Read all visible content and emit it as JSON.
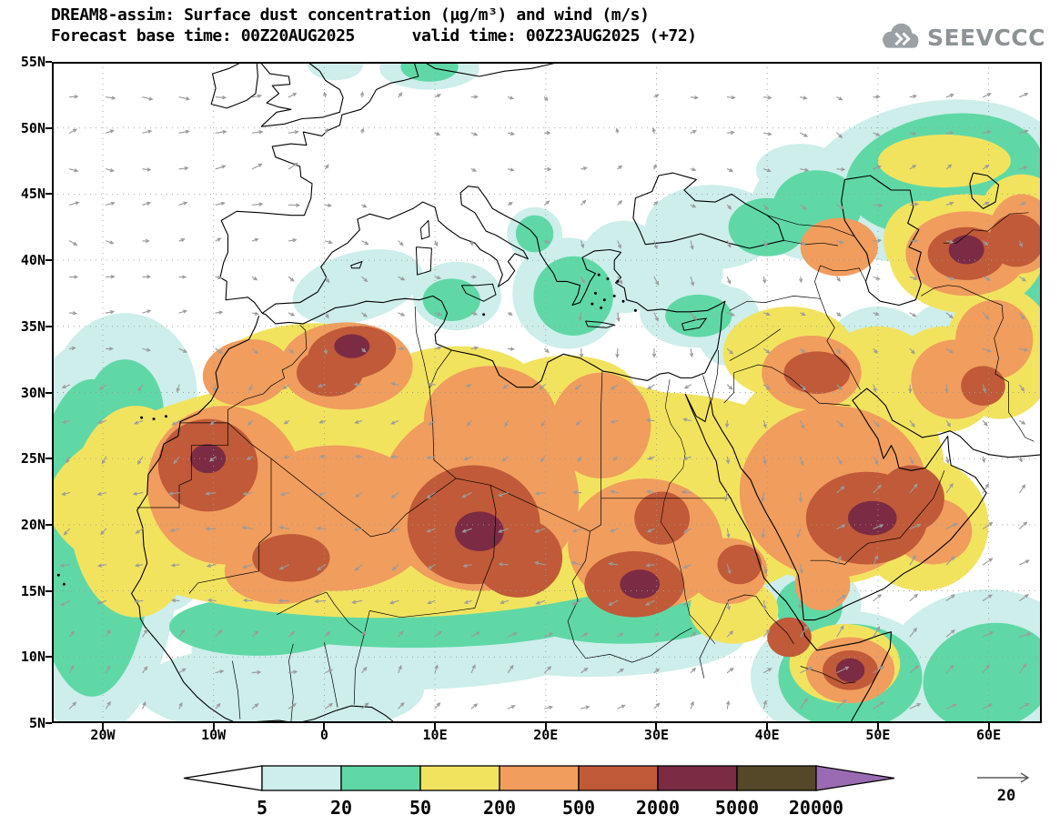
{
  "header": {
    "title_line1": "DREAM8-assim: Surface dust concentration (µg/m³) and wind (m/s)",
    "title_line2": "Forecast base time: 00Z20AUG2025      valid time: 00Z23AUG2025 (+72)",
    "logo_text": "SEEVCCC"
  },
  "map": {
    "lat_ticks": [
      "55N",
      "50N",
      "45N",
      "40N",
      "35N",
      "30N",
      "25N",
      "20N",
      "15N",
      "10N",
      "5N"
    ],
    "lon_ticks": [
      "20W",
      "10W",
      "0",
      "10E",
      "20E",
      "30E",
      "40E",
      "50E",
      "60E"
    ]
  },
  "colorbar": {
    "labels": [
      "5",
      "20",
      "50",
      "200",
      "500",
      "2000",
      "5000",
      "20000"
    ],
    "colors": [
      "#ffffff",
      "#cdeeea",
      "#5fd8a6",
      "#f2e35f",
      "#f09d5e",
      "#c05a38",
      "#7c2b45",
      "#554828",
      "#9a6bb3"
    ]
  },
  "wind_legend": {
    "label": "20"
  },
  "chart_data": {
    "type": "heatmap",
    "title": "DREAM8-assim: Surface dust concentration (µg/m³) and wind (m/s)",
    "forecast_base_time": "00Z20AUG2025",
    "valid_time": "00Z23AUG2025",
    "lead": "+72",
    "variable": "surface dust concentration",
    "units": "µg/m³",
    "wind_units": "m/s",
    "wind_reference_value": 20,
    "x_axis": {
      "label": "longitude",
      "ticks": [
        "20W",
        "10W",
        "0",
        "10E",
        "20E",
        "30E",
        "40E",
        "50E",
        "60E"
      ],
      "range_deg": [
        -25,
        65
      ]
    },
    "y_axis": {
      "label": "latitude",
      "ticks": [
        "5N",
        "10N",
        "15N",
        "20N",
        "25N",
        "30N",
        "35N",
        "40N",
        "45N",
        "50N",
        "55N"
      ],
      "range_deg": [
        5,
        55
      ]
    },
    "contour_levels_ugm3": [
      5,
      20,
      50,
      200,
      500,
      2000,
      5000,
      20000
    ],
    "level_colors": [
      "#ffffff",
      "#cdeeea",
      "#5fd8a6",
      "#f2e35f",
      "#f09d5e",
      "#c05a38",
      "#7c2b45",
      "#554828",
      "#9a6bb3"
    ],
    "legend_position": "bottom",
    "local_maxima_over_2000_ugm3": [
      {
        "approx_lon": -11,
        "approx_lat": 25
      },
      {
        "approx_lon": 3,
        "approx_lat": 34
      },
      {
        "approx_lon": 14,
        "approx_lat": 19
      },
      {
        "approx_lon": 29,
        "approx_lat": 15
      },
      {
        "approx_lon": 50,
        "approx_lat": 21
      },
      {
        "approx_lon": 58,
        "approx_lat": 41
      }
    ]
  }
}
